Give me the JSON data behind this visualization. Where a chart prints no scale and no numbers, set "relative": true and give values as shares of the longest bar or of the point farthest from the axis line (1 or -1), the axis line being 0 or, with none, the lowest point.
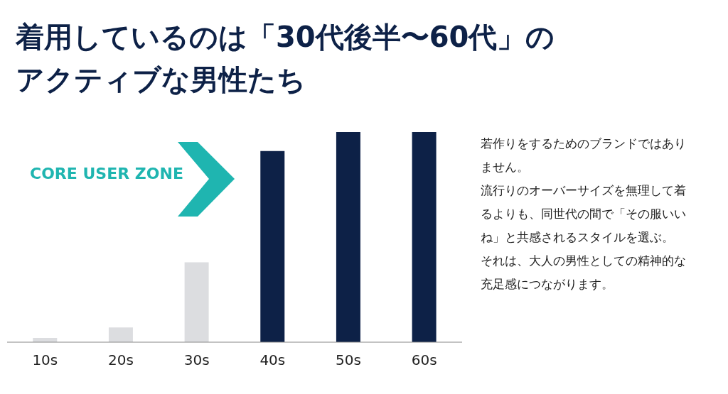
{
  "chart_data": {
    "type": "bar",
    "title": "着用しているのは「30代後半〜60代」のアクティブな男性たち",
    "categories": [
      "10s",
      "20s",
      "30s",
      "40s",
      "50s",
      "60s"
    ],
    "values": [
      0.02,
      0.07,
      0.38,
      0.91,
      1,
      1
    ],
    "relative": true,
    "colors": [
      "#dcdde0",
      "#dcdde0",
      "#dcdde0",
      "#0d2147",
      "#0d2147",
      "#0d2147"
    ],
    "annotations": [
      "CORE USER ZONE",
      "若作りをするためのブランドではありません。",
      "流行りのオーバーサイズを無理して着るよりも、同世代の間で「その服いいね」と共感されるスタイルを選ぶ。",
      "それは、大人の男性としての精神的な充足感につながります。"
    ]
  }
}
